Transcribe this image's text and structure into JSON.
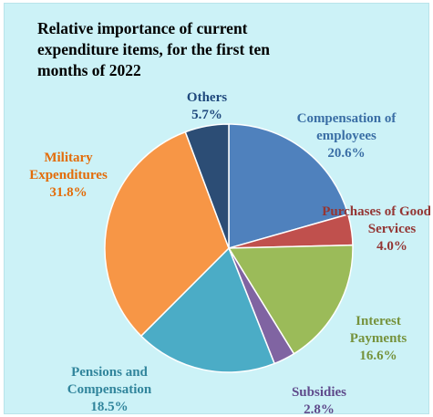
{
  "chart_data": {
    "type": "pie",
    "title": "Relative importance of current expenditure items, for the first ten months of 2022",
    "slices": [
      {
        "label": "Compensation of employees",
        "value": 20.6,
        "value_label": "20.6%",
        "color": "#4f81bd"
      },
      {
        "label": "Purchases of Goods and Services",
        "value": 4.0,
        "value_label": "4.0%",
        "color": "#c0504d"
      },
      {
        "label": "Interest Payments",
        "value": 16.6,
        "value_label": "16.6%",
        "color": "#9bbb59"
      },
      {
        "label": "Subsidies",
        "value": 2.8,
        "value_label": "2.8%",
        "color": "#8064a2"
      },
      {
        "label": "Pensions and Compensation",
        "value": 18.5,
        "value_label": "18.5%",
        "color": "#4bacc6"
      },
      {
        "label": "Military Expenditures",
        "value": 31.8,
        "value_label": "31.8%",
        "color": "#f79646"
      },
      {
        "label": "Others",
        "value": 5.7,
        "value_label": "5.7%",
        "color": "#2c4d75"
      }
    ],
    "label_colors": [
      "#3a6ea5",
      "#943634",
      "#76923c",
      "#5f4a8b",
      "#31859c",
      "#e36c09",
      "#1f497d"
    ]
  },
  "title_lines": "Relative importance of current\nexpenditure items, for the first ten\nmonths of 2022"
}
